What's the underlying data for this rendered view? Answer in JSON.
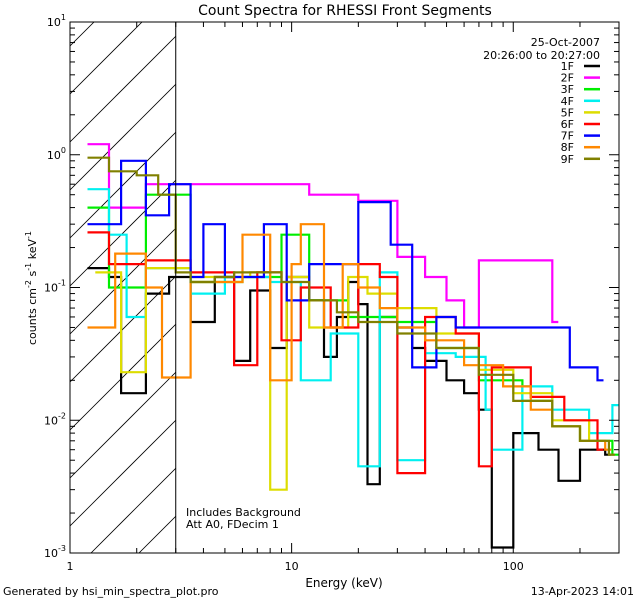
{
  "chart_data": {
    "type": "line",
    "title": "Count Spectra for RHESSI Front Segments",
    "xlabel": "Energy (keV)",
    "ylabel_parts": {
      "base": "counts cm",
      "sup1": "-2",
      "mid": " s",
      "sup2": "-1",
      "end": " keV",
      "sup3": "-1"
    },
    "xscale": "log",
    "yscale": "log",
    "xlim": [
      1,
      300
    ],
    "ylim": [
      0.001,
      10
    ],
    "x_ticks": [
      {
        "value": 1,
        "label": "1"
      },
      {
        "value": 10,
        "label": "10"
      },
      {
        "value": 100,
        "label": "100"
      }
    ],
    "y_ticks": [
      {
        "value": 0.001,
        "base": "10",
        "exp": "-3"
      },
      {
        "value": 0.01,
        "base": "10",
        "exp": "-2"
      },
      {
        "value": 0.1,
        "base": "10",
        "exp": "-1"
      },
      {
        "value": 1,
        "base": "10",
        "exp": "0"
      },
      {
        "value": 10,
        "base": "10",
        "exp": "1"
      }
    ],
    "date": "25-Oct-2007",
    "time_range": "20:26:00 to 20:27:00",
    "excluded_region": {
      "x_from": 1,
      "x_to": 3
    },
    "annotations": [
      "Includes Background",
      "Att A0, FDecim 1"
    ],
    "footer_left": "Generated by hsi_min_spectra_plot.pro",
    "footer_right": "13-Apr-2023 14:01",
    "series": [
      {
        "name": "1F",
        "color": "#000000",
        "points": [
          [
            1.2,
            0.14
          ],
          [
            1.5,
            0.12
          ],
          [
            1.7,
            0.016
          ],
          [
            2.2,
            0.09
          ],
          [
            2.8,
            0.12
          ],
          [
            3.5,
            0.055
          ],
          [
            4.5,
            0.12
          ],
          [
            5.5,
            0.028
          ],
          [
            6.5,
            0.095
          ],
          [
            8,
            0.035
          ],
          [
            9.5,
            0.12
          ],
          [
            12,
            0.08
          ],
          [
            14,
            0.03
          ],
          [
            16,
            0.06
          ],
          [
            18,
            0.11
          ],
          [
            20,
            0.075
          ],
          [
            22,
            0.0033
          ],
          [
            25,
            0.06
          ],
          [
            30,
            0.05
          ],
          [
            35,
            0.035
          ],
          [
            40,
            0.028
          ],
          [
            50,
            0.02
          ],
          [
            60,
            0.016
          ],
          [
            70,
            0.012
          ],
          [
            80,
            0.0011
          ],
          [
            100,
            0.008
          ],
          [
            130,
            0.006
          ],
          [
            160,
            0.0035
          ],
          [
            200,
            0.006
          ],
          [
            260,
            0.0055
          ]
        ]
      },
      {
        "name": "2F",
        "color": "#ff00ff",
        "points": [
          [
            1.2,
            1.2
          ],
          [
            1.5,
            0.4
          ],
          [
            2.2,
            0.6
          ],
          [
            12,
            0.5
          ],
          [
            20,
            0.45
          ],
          [
            30,
            0.17
          ],
          [
            40,
            0.12
          ],
          [
            50,
            0.08
          ],
          [
            60,
            0.05
          ],
          [
            70,
            0.16
          ],
          [
            150,
            0.055
          ]
        ]
      },
      {
        "name": "3F",
        "color": "#00ee00",
        "points": [
          [
            1.2,
            0.4
          ],
          [
            1.5,
            0.1
          ],
          [
            2.2,
            0.5
          ],
          [
            3.5,
            0.11
          ],
          [
            6,
            0.12
          ],
          [
            9,
            0.25
          ],
          [
            12,
            0.08
          ],
          [
            18,
            0.06
          ],
          [
            30,
            0.055
          ],
          [
            45,
            0.035
          ],
          [
            70,
            0.02
          ],
          [
            110,
            0.014
          ],
          [
            150,
            0.009
          ],
          [
            200,
            0.007
          ],
          [
            280,
            0.0055
          ]
        ]
      },
      {
        "name": "4F",
        "color": "#00f0f0",
        "points": [
          [
            1.2,
            0.55
          ],
          [
            1.5,
            0.25
          ],
          [
            1.8,
            0.06
          ],
          [
            2.2,
            0.14
          ],
          [
            3.5,
            0.09
          ],
          [
            5,
            0.12
          ],
          [
            8,
            0.11
          ],
          [
            11,
            0.02
          ],
          [
            15,
            0.045
          ],
          [
            20,
            0.0045
          ],
          [
            25,
            0.13
          ],
          [
            30,
            0.005
          ],
          [
            40,
            0.032
          ],
          [
            55,
            0.03
          ],
          [
            75,
            0.012
          ],
          [
            80,
            0.006
          ],
          [
            110,
            0.018
          ],
          [
            150,
            0.012
          ],
          [
            220,
            0.008
          ],
          [
            280,
            0.013
          ]
        ]
      },
      {
        "name": "5F",
        "color": "#dddd00",
        "points": [
          [
            1.3,
            0.13
          ],
          [
            1.7,
            0.023
          ],
          [
            2.2,
            0.14
          ],
          [
            3.5,
            0.12
          ],
          [
            6.5,
            0.13
          ],
          [
            8,
            0.003
          ],
          [
            9.5,
            0.12
          ],
          [
            12,
            0.05
          ],
          [
            18,
            0.12
          ],
          [
            22,
            0.09
          ],
          [
            30,
            0.07
          ],
          [
            45,
            0.045
          ],
          [
            70,
            0.024
          ],
          [
            100,
            0.016
          ],
          [
            150,
            0.01
          ],
          [
            220,
            0.007
          ]
        ]
      },
      {
        "name": "6F",
        "color": "#ff0000",
        "points": [
          [
            1.2,
            0.26
          ],
          [
            1.5,
            0.15
          ],
          [
            2.2,
            0.16
          ],
          [
            3.5,
            0.13
          ],
          [
            4.5,
            0.13
          ],
          [
            5.5,
            0.026
          ],
          [
            7,
            0.13
          ],
          [
            9,
            0.04
          ],
          [
            11,
            0.1
          ],
          [
            15,
            0.05
          ],
          [
            20,
            0.15
          ],
          [
            25,
            0.12
          ],
          [
            30,
            0.004
          ],
          [
            40,
            0.06
          ],
          [
            55,
            0.045
          ],
          [
            70,
            0.0045
          ],
          [
            80,
            0.025
          ],
          [
            120,
            0.015
          ],
          [
            170,
            0.01
          ],
          [
            240,
            0.006
          ]
        ]
      },
      {
        "name": "7F",
        "color": "#0000ff",
        "points": [
          [
            1.2,
            0.3
          ],
          [
            1.7,
            0.9
          ],
          [
            2.2,
            0.35
          ],
          [
            2.8,
            0.6
          ],
          [
            3.5,
            0.12
          ],
          [
            4,
            0.3
          ],
          [
            5,
            0.12
          ],
          [
            7.5,
            0.3
          ],
          [
            9.5,
            0.08
          ],
          [
            12,
            0.15
          ],
          [
            20,
            0.44
          ],
          [
            28,
            0.21
          ],
          [
            35,
            0.025
          ],
          [
            45,
            0.06
          ],
          [
            55,
            0.05
          ],
          [
            100,
            0.05
          ],
          [
            180,
            0.025
          ],
          [
            240,
            0.02
          ]
        ]
      },
      {
        "name": "8F",
        "color": "#ff8800",
        "points": [
          [
            1.2,
            0.05
          ],
          [
            1.6,
            0.18
          ],
          [
            2.2,
            0.1
          ],
          [
            2.6,
            0.021
          ],
          [
            3.5,
            0.11
          ],
          [
            6,
            0.25
          ],
          [
            8,
            0.02
          ],
          [
            10,
            0.15
          ],
          [
            11,
            0.3
          ],
          [
            14,
            0.05
          ],
          [
            17,
            0.15
          ],
          [
            20,
            0.1
          ],
          [
            25,
            0.07
          ],
          [
            30,
            0.05
          ],
          [
            40,
            0.04
          ],
          [
            60,
            0.026
          ],
          [
            90,
            0.018
          ],
          [
            120,
            0.012
          ],
          [
            150,
            0.009
          ],
          [
            200,
            0.007
          ],
          [
            260,
            0.006
          ]
        ]
      },
      {
        "name": "9F",
        "color": "#808000",
        "points": [
          [
            1.2,
            0.95
          ],
          [
            1.5,
            0.75
          ],
          [
            2,
            0.7
          ],
          [
            2.5,
            0.5
          ],
          [
            3,
            0.13
          ],
          [
            3.5,
            0.11
          ],
          [
            4.5,
            0.12
          ],
          [
            5.5,
            0.13
          ],
          [
            7,
            0.13
          ],
          [
            9,
            0.11
          ],
          [
            12,
            0.08
          ],
          [
            16,
            0.065
          ],
          [
            20,
            0.055
          ],
          [
            30,
            0.045
          ],
          [
            45,
            0.035
          ],
          [
            70,
            0.022
          ],
          [
            100,
            0.014
          ],
          [
            150,
            0.009
          ],
          [
            200,
            0.007
          ],
          [
            270,
            0.0055
          ]
        ]
      }
    ]
  }
}
